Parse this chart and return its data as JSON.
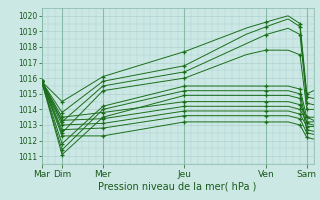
{
  "xlabel": "Pression niveau de la mer( hPa )",
  "bg_color": "#cce8e4",
  "grid_color": "#aacccc",
  "line_color": "#1a6e1a",
  "ylim": [
    1010.5,
    1020.5
  ],
  "day_labels": [
    "Mar",
    "Dim",
    "Mer",
    "Jeu",
    "Ven",
    "Sam"
  ],
  "day_positions": [
    0,
    12,
    36,
    84,
    132,
    156
  ],
  "xlim": [
    0,
    160
  ],
  "ensembles": [
    {
      "pts": [
        [
          0,
          1015.8
        ],
        [
          12,
          1014.5
        ],
        [
          36,
          1016.1
        ],
        [
          84,
          1017.7
        ],
        [
          120,
          1019.2
        ],
        [
          132,
          1019.6
        ],
        [
          145,
          1020.0
        ],
        [
          152,
          1019.5
        ],
        [
          156,
          1015.0
        ],
        [
          160,
          1015.2
        ]
      ],
      "mk": [
        [
          0,
          1015.8
        ],
        [
          12,
          1014.5
        ],
        [
          36,
          1016.1
        ],
        [
          84,
          1017.7
        ],
        [
          132,
          1019.6
        ],
        [
          152,
          1019.5
        ],
        [
          156,
          1015.0
        ]
      ]
    },
    {
      "pts": [
        [
          0,
          1015.8
        ],
        [
          12,
          1013.8
        ],
        [
          36,
          1015.8
        ],
        [
          84,
          1016.8
        ],
        [
          120,
          1018.8
        ],
        [
          132,
          1019.3
        ],
        [
          145,
          1019.8
        ],
        [
          152,
          1019.3
        ],
        [
          156,
          1014.8
        ],
        [
          160,
          1014.7
        ]
      ],
      "mk": [
        [
          0,
          1015.8
        ],
        [
          12,
          1013.8
        ],
        [
          36,
          1015.8
        ],
        [
          84,
          1016.8
        ],
        [
          132,
          1019.3
        ],
        [
          152,
          1019.3
        ],
        [
          156,
          1014.8
        ]
      ]
    },
    {
      "pts": [
        [
          0,
          1015.8
        ],
        [
          12,
          1013.2
        ],
        [
          36,
          1015.5
        ],
        [
          84,
          1016.4
        ],
        [
          120,
          1018.2
        ],
        [
          132,
          1018.8
        ],
        [
          145,
          1019.2
        ],
        [
          152,
          1018.8
        ],
        [
          156,
          1014.4
        ],
        [
          160,
          1014.3
        ]
      ],
      "mk": [
        [
          0,
          1015.8
        ],
        [
          12,
          1013.2
        ],
        [
          36,
          1015.5
        ],
        [
          84,
          1016.4
        ],
        [
          132,
          1018.8
        ],
        [
          152,
          1018.8
        ],
        [
          156,
          1014.4
        ]
      ]
    },
    {
      "pts": [
        [
          0,
          1015.8
        ],
        [
          12,
          1012.5
        ],
        [
          36,
          1015.2
        ],
        [
          84,
          1016.0
        ],
        [
          120,
          1017.5
        ],
        [
          132,
          1017.8
        ],
        [
          145,
          1017.8
        ],
        [
          152,
          1017.5
        ],
        [
          156,
          1014.0
        ],
        [
          160,
          1014.0
        ]
      ],
      "mk": [
        [
          0,
          1015.8
        ],
        [
          12,
          1012.5
        ],
        [
          36,
          1015.2
        ],
        [
          84,
          1016.0
        ],
        [
          132,
          1017.8
        ],
        [
          152,
          1017.5
        ],
        [
          156,
          1014.0
        ]
      ]
    },
    {
      "pts": [
        [
          0,
          1015.8
        ],
        [
          12,
          1011.8
        ],
        [
          36,
          1014.2
        ],
        [
          84,
          1015.5
        ],
        [
          120,
          1015.5
        ],
        [
          132,
          1015.5
        ],
        [
          145,
          1015.5
        ],
        [
          152,
          1015.3
        ],
        [
          156,
          1013.5
        ],
        [
          160,
          1013.3
        ]
      ],
      "mk": [
        [
          0,
          1015.8
        ],
        [
          12,
          1011.8
        ],
        [
          36,
          1014.2
        ],
        [
          84,
          1015.5
        ],
        [
          132,
          1015.5
        ],
        [
          152,
          1015.3
        ],
        [
          156,
          1013.5
        ]
      ]
    },
    {
      "pts": [
        [
          0,
          1015.8
        ],
        [
          12,
          1011.4
        ],
        [
          36,
          1014.0
        ],
        [
          84,
          1015.2
        ],
        [
          120,
          1015.2
        ],
        [
          132,
          1015.2
        ],
        [
          145,
          1015.2
        ],
        [
          152,
          1015.0
        ],
        [
          156,
          1013.1
        ],
        [
          160,
          1013.0
        ]
      ],
      "mk": [
        [
          0,
          1015.8
        ],
        [
          12,
          1011.4
        ],
        [
          36,
          1014.0
        ],
        [
          84,
          1015.2
        ],
        [
          132,
          1015.2
        ],
        [
          152,
          1015.0
        ],
        [
          156,
          1013.1
        ]
      ]
    },
    {
      "pts": [
        [
          0,
          1015.8
        ],
        [
          12,
          1011.1
        ],
        [
          36,
          1013.5
        ],
        [
          84,
          1014.9
        ],
        [
          120,
          1014.9
        ],
        [
          132,
          1014.9
        ],
        [
          145,
          1014.9
        ],
        [
          152,
          1014.7
        ],
        [
          156,
          1012.7
        ],
        [
          160,
          1012.6
        ]
      ],
      "mk": [
        [
          0,
          1015.8
        ],
        [
          12,
          1011.1
        ],
        [
          36,
          1013.5
        ],
        [
          84,
          1014.9
        ],
        [
          132,
          1014.9
        ],
        [
          152,
          1014.7
        ],
        [
          156,
          1012.7
        ]
      ]
    },
    {
      "pts": [
        [
          0,
          1015.8
        ],
        [
          12,
          1013.5
        ],
        [
          36,
          1013.8
        ],
        [
          84,
          1014.5
        ],
        [
          120,
          1014.5
        ],
        [
          132,
          1014.5
        ],
        [
          145,
          1014.5
        ],
        [
          152,
          1014.3
        ],
        [
          156,
          1013.5
        ],
        [
          160,
          1013.5
        ]
      ],
      "mk": [
        [
          0,
          1015.8
        ],
        [
          12,
          1013.5
        ],
        [
          36,
          1013.8
        ],
        [
          84,
          1014.5
        ],
        [
          132,
          1014.5
        ],
        [
          152,
          1014.3
        ],
        [
          156,
          1013.5
        ]
      ]
    },
    {
      "pts": [
        [
          0,
          1015.8
        ],
        [
          12,
          1013.3
        ],
        [
          36,
          1013.4
        ],
        [
          84,
          1014.2
        ],
        [
          120,
          1014.2
        ],
        [
          132,
          1014.2
        ],
        [
          145,
          1014.2
        ],
        [
          152,
          1014.0
        ],
        [
          156,
          1013.2
        ],
        [
          160,
          1013.2
        ]
      ],
      "mk": [
        [
          0,
          1015.8
        ],
        [
          12,
          1013.3
        ],
        [
          36,
          1013.4
        ],
        [
          84,
          1014.2
        ],
        [
          132,
          1014.2
        ],
        [
          152,
          1014.0
        ],
        [
          156,
          1013.2
        ]
      ]
    },
    {
      "pts": [
        [
          0,
          1015.8
        ],
        [
          12,
          1013.0
        ],
        [
          36,
          1013.1
        ],
        [
          84,
          1013.9
        ],
        [
          120,
          1013.9
        ],
        [
          132,
          1013.9
        ],
        [
          145,
          1013.9
        ],
        [
          152,
          1013.7
        ],
        [
          156,
          1012.9
        ],
        [
          160,
          1012.9
        ]
      ],
      "mk": [
        [
          0,
          1015.8
        ],
        [
          12,
          1013.0
        ],
        [
          36,
          1013.1
        ],
        [
          84,
          1013.9
        ],
        [
          132,
          1013.9
        ],
        [
          152,
          1013.7
        ],
        [
          156,
          1012.9
        ]
      ]
    },
    {
      "pts": [
        [
          0,
          1015.8
        ],
        [
          12,
          1012.7
        ],
        [
          36,
          1012.8
        ],
        [
          84,
          1013.6
        ],
        [
          120,
          1013.6
        ],
        [
          132,
          1013.6
        ],
        [
          145,
          1013.6
        ],
        [
          152,
          1013.4
        ],
        [
          156,
          1012.5
        ],
        [
          160,
          1012.4
        ]
      ],
      "mk": [
        [
          0,
          1015.8
        ],
        [
          12,
          1012.7
        ],
        [
          36,
          1012.8
        ],
        [
          84,
          1013.6
        ],
        [
          132,
          1013.6
        ],
        [
          152,
          1013.4
        ],
        [
          156,
          1012.5
        ]
      ]
    },
    {
      "pts": [
        [
          0,
          1015.8
        ],
        [
          12,
          1012.3
        ],
        [
          36,
          1012.3
        ],
        [
          84,
          1013.2
        ],
        [
          120,
          1013.2
        ],
        [
          132,
          1013.2
        ],
        [
          145,
          1013.2
        ],
        [
          152,
          1013.0
        ],
        [
          156,
          1012.2
        ],
        [
          160,
          1012.1
        ]
      ],
      "mk": [
        [
          0,
          1015.8
        ],
        [
          12,
          1012.3
        ],
        [
          36,
          1012.3
        ],
        [
          84,
          1013.2
        ],
        [
          132,
          1013.2
        ],
        [
          152,
          1013.0
        ],
        [
          156,
          1012.2
        ]
      ]
    }
  ]
}
